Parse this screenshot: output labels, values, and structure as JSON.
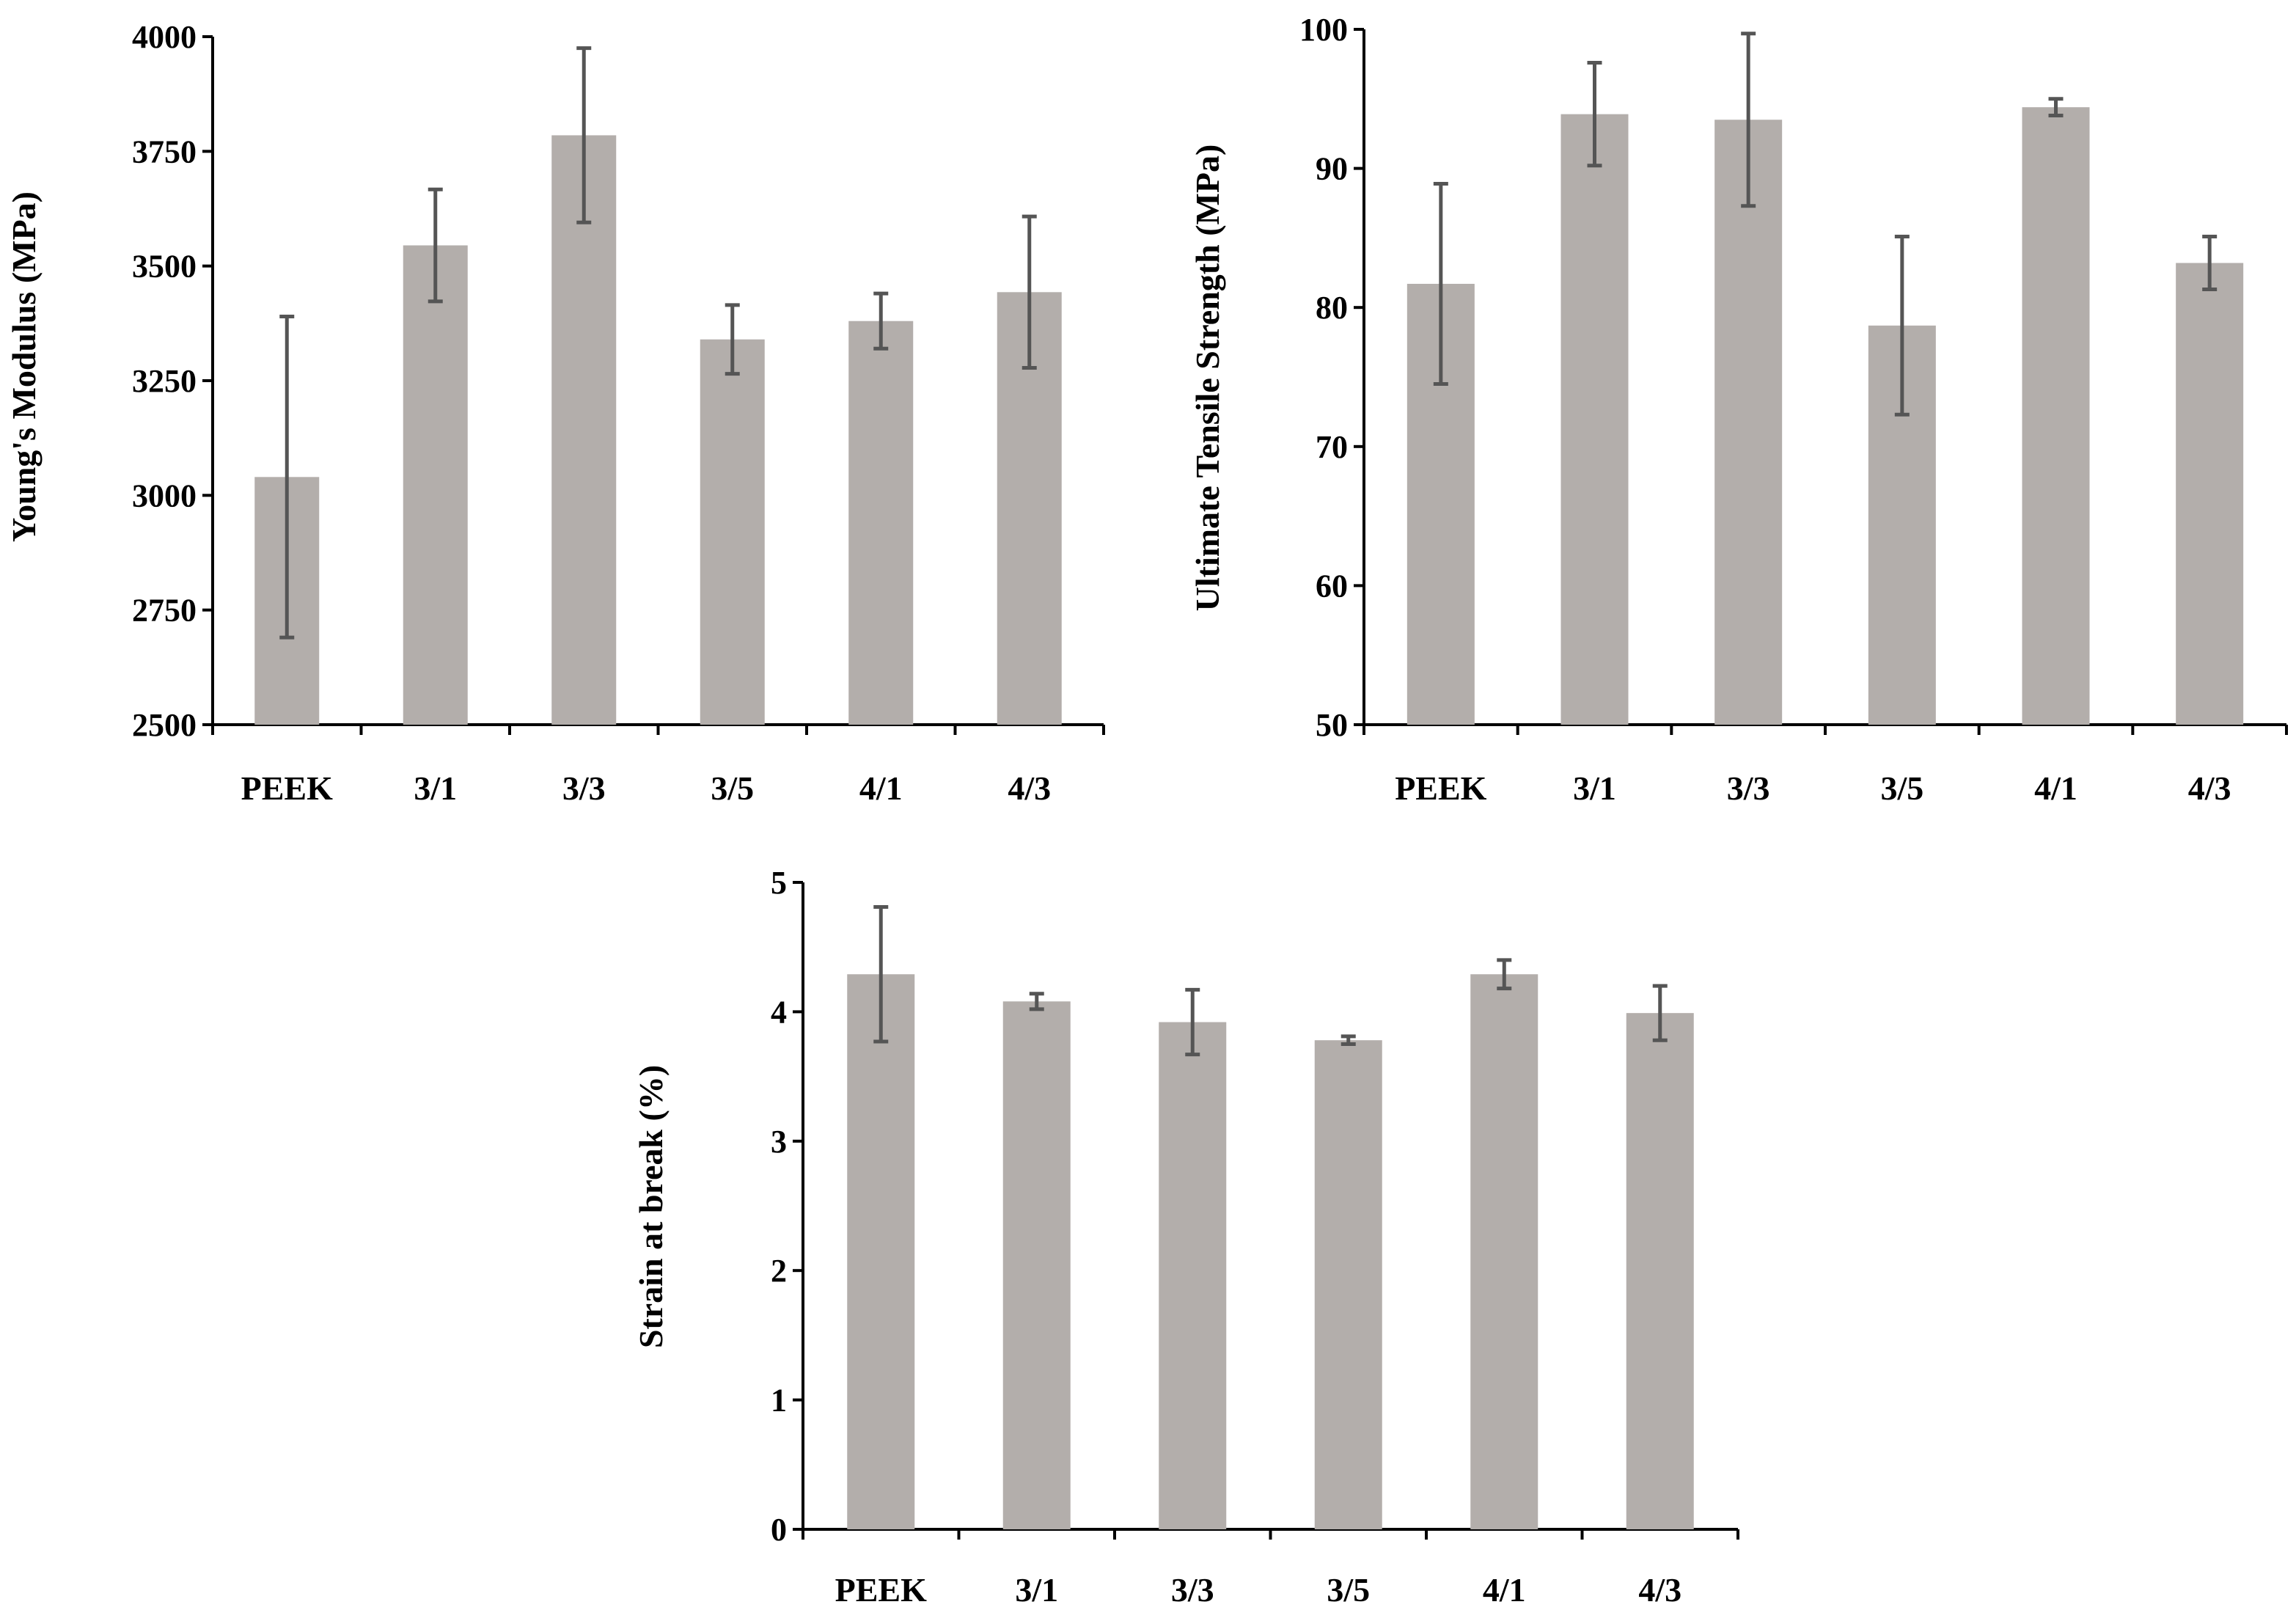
{
  "chart_data": [
    {
      "type": "bar",
      "title": "",
      "xlabel": "",
      "ylabel": "Young's Modulus (MPa)",
      "categories": [
        "PEEK",
        "3/1",
        "3/3",
        "3/5",
        "4/1",
        "4/3"
      ],
      "values": [
        3040,
        3545,
        3785,
        3340,
        3380,
        3443
      ],
      "errors": [
        350,
        122,
        190,
        75,
        60,
        165
      ],
      "ylim": [
        2500,
        4000
      ],
      "yticks": [
        2500,
        2750,
        3000,
        3250,
        3500,
        3750,
        4000
      ],
      "grid": false,
      "colors": {
        "bar": "#b3aeab",
        "error_bar": "#555555",
        "axis": "#000000"
      }
    },
    {
      "type": "bar",
      "title": "",
      "xlabel": "",
      "ylabel": "Ultimate Tensile Strength (MPa)",
      "categories": [
        "PEEK",
        "3/1",
        "3/3",
        "3/5",
        "4/1",
        "4/3"
      ],
      "values": [
        81.7,
        93.9,
        93.5,
        78.7,
        94.4,
        83.2
      ],
      "errors": [
        7.2,
        3.7,
        6.2,
        6.4,
        0.6,
        1.9
      ],
      "ylim": [
        50,
        100
      ],
      "yticks": [
        50,
        60,
        70,
        80,
        90,
        100
      ],
      "grid": false,
      "colors": {
        "bar": "#b3aeab",
        "error_bar": "#555555",
        "axis": "#000000"
      }
    },
    {
      "type": "bar",
      "title": "",
      "xlabel": "",
      "ylabel": "Strain at break (%)",
      "categories": [
        "PEEK",
        "3/1",
        "3/3",
        "3/5",
        "4/1",
        "4/3"
      ],
      "values": [
        4.29,
        4.08,
        3.92,
        3.78,
        4.29,
        3.99
      ],
      "errors": [
        0.52,
        0.06,
        0.25,
        0.03,
        0.11,
        0.21
      ],
      "ylim": [
        0,
        5
      ],
      "yticks": [
        0,
        1,
        2,
        3,
        4,
        5
      ],
      "grid": false,
      "colors": {
        "bar": "#b3aeab",
        "error_bar": "#555555",
        "axis": "#000000"
      }
    }
  ]
}
